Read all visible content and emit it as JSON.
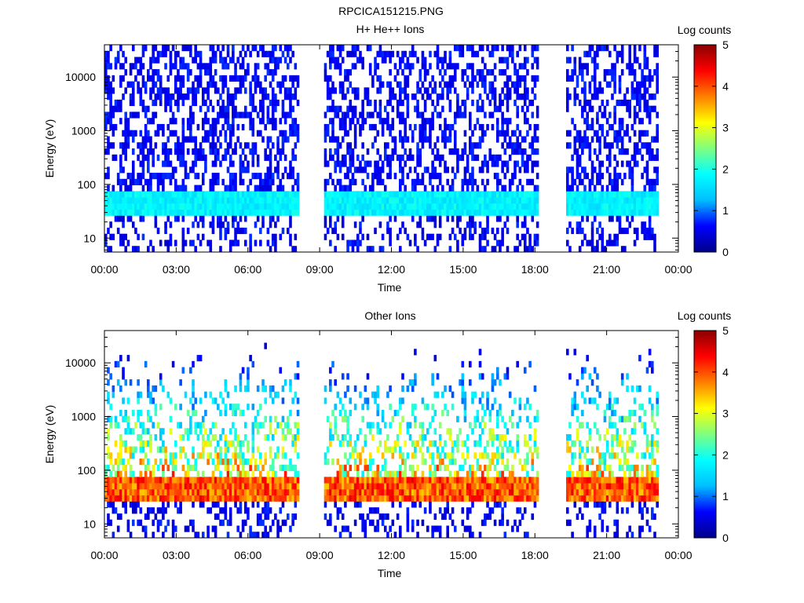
{
  "figure_title": "RPCICA151215.PNG",
  "colorbar_label": "Log counts",
  "colorbar_ticks": [
    "0",
    "1",
    "2",
    "3",
    "4",
    "5"
  ],
  "colormap": [
    "#00008b",
    "#0000ff",
    "#00bfff",
    "#00ffff",
    "#7fff7f",
    "#ffff00",
    "#ff7f00",
    "#ff0000",
    "#8b0000"
  ],
  "chart_data": [
    {
      "type": "heatmap",
      "title": "H+ He++ Ions",
      "xlabel": "Time",
      "ylabel": "Energy (eV)",
      "xticks": [
        "00:00",
        "03:00",
        "06:00",
        "09:00",
        "12:00",
        "15:00",
        "18:00",
        "21:00",
        "00:00"
      ],
      "yticks": [
        "10",
        "100",
        "1000",
        "10000"
      ],
      "y_scale": "log",
      "ylim": [
        5.5,
        40000
      ],
      "xlim_hours": [
        0,
        24
      ],
      "zlim_log_counts": [
        0,
        5
      ],
      "data_gaps_hours": [
        [
          8.1,
          9.1
        ],
        [
          18.1,
          19.3
        ],
        [
          23.1,
          24
        ]
      ],
      "low_energy_band_eV": [
        30,
        70
      ],
      "peak_log_counts": 2.0
    },
    {
      "type": "heatmap",
      "title": "Other Ions",
      "xlabel": "Time",
      "ylabel": "Energy (eV)",
      "xticks": [
        "00:00",
        "03:00",
        "06:00",
        "09:00",
        "12:00",
        "15:00",
        "18:00",
        "21:00",
        "00:00"
      ],
      "yticks": [
        "10",
        "100",
        "1000",
        "10000"
      ],
      "y_scale": "log",
      "ylim": [
        5.5,
        40000
      ],
      "xlim_hours": [
        0,
        24
      ],
      "zlim_log_counts": [
        0,
        5
      ],
      "data_gaps_hours": [
        [
          8.1,
          9.1
        ],
        [
          18.1,
          19.3
        ],
        [
          23.1,
          24
        ]
      ],
      "low_energy_band_eV": [
        30,
        70
      ],
      "peak_log_counts": 4.5
    }
  ]
}
